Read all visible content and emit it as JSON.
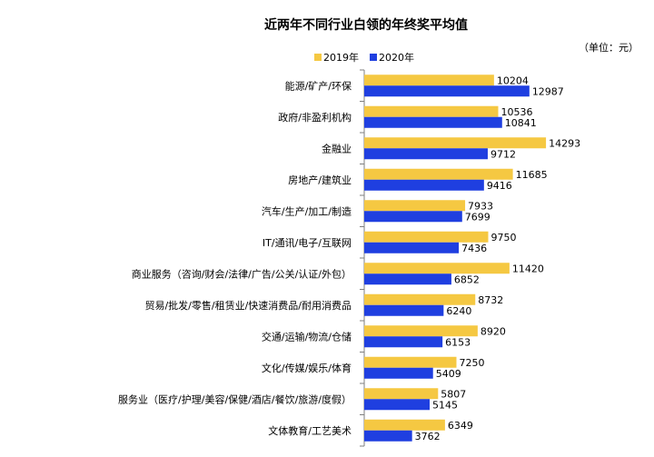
{
  "chart_data": {
    "type": "bar",
    "orientation": "horizontal",
    "title": "近两年不同行业白领的年终奖平均值",
    "unit_note": "（单位：元）",
    "legend_position": "top",
    "grid": false,
    "xlim": [
      0,
      16000
    ],
    "categories": [
      "能源/矿产/环保",
      "政府/非盈利机构",
      "金融业",
      "房地产/建筑业",
      "汽车/生产/加工/制造",
      "IT/通讯/电子/互联网",
      "商业服务（咨询/财会/法律/广告/公关/认证/外包）",
      "贸易/批发/零售/租赁业/快速消费品/耐用消费品",
      "交通/运输/物流/仓储",
      "文化/传媒/娱乐/体育",
      "服务业（医疗/护理/美容/保健/酒店/餐饮/旅游/度假）",
      "文体教育/工艺美术"
    ],
    "series": [
      {
        "name": "2019年",
        "color": "#F5C842",
        "values": [
          10204,
          10536,
          14293,
          11685,
          7933,
          9750,
          11420,
          8732,
          8920,
          7250,
          5807,
          6349
        ]
      },
      {
        "name": "2020年",
        "color": "#1F3FE0",
        "values": [
          12987,
          10841,
          9712,
          9416,
          7699,
          7436,
          6852,
          6240,
          6153,
          5409,
          5145,
          3762
        ]
      }
    ]
  }
}
